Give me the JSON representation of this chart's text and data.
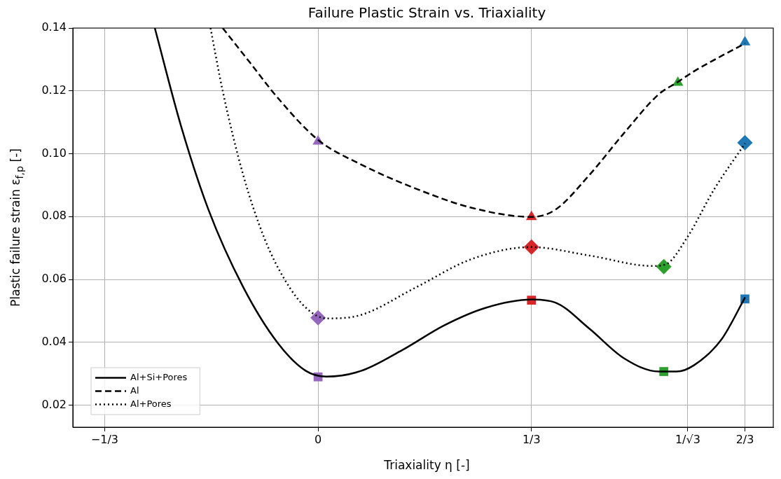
{
  "chart_data": {
    "type": "line",
    "title": "Failure Plastic Strain vs. Triaxiality",
    "xlabel": "Triaxiality η [-]",
    "ylabel": "Plastic failure strain ε$_{f,p}$ [-]",
    "xlim": [
      -0.383,
      0.711
    ],
    "ylim": [
      0.013,
      0.14
    ],
    "xticks": [
      {
        "value": -0.3333,
        "label": "−1/3"
      },
      {
        "value": 0,
        "label": "0"
      },
      {
        "value": 0.3333,
        "label": "1/3"
      },
      {
        "value": 0.5774,
        "label": "1/√3"
      },
      {
        "value": 0.6667,
        "label": "2/3"
      }
    ],
    "yticks": [
      {
        "value": 0.02,
        "label": "0.02"
      },
      {
        "value": 0.04,
        "label": "0.04"
      },
      {
        "value": 0.06,
        "label": "0.06"
      },
      {
        "value": 0.08,
        "label": "0.08"
      },
      {
        "value": 0.1,
        "label": "0.10"
      },
      {
        "value": 0.12,
        "label": "0.12"
      },
      {
        "value": 0.14,
        "label": "0.14"
      }
    ],
    "grid": true,
    "legend": "bottom left",
    "series": [
      {
        "name": "Al+Si+Pores",
        "color": "#000000",
        "line_style": "solid",
        "marker": "none",
        "x": [
          -0.255,
          -0.214,
          -0.171,
          -0.117,
          -0.063,
          -0.019,
          0.013,
          0.067,
          0.132,
          0.197,
          0.262,
          0.333,
          0.37,
          0.424,
          0.478,
          0.532,
          0.56,
          0.587,
          0.63,
          0.667
        ],
        "values": [
          0.14,
          0.1088,
          0.0821,
          0.0576,
          0.0398,
          0.0309,
          0.0291,
          0.0309,
          0.0376,
          0.0454,
          0.051,
          0.0536,
          0.0527,
          0.0443,
          0.0349,
          0.0307,
          0.0307,
          0.0327,
          0.0409,
          0.0543
        ]
      },
      {
        "name": "Al",
        "color": "#000000",
        "line_style": "dashed",
        "marker": "none",
        "x": [
          -0.149,
          -0.106,
          -0.063,
          0,
          0.067,
          0.154,
          0.24,
          0.333,
          0.37,
          0.424,
          0.478,
          0.532,
          0.56,
          0.587,
          0.63,
          0.667
        ],
        "values": [
          0.14,
          0.1289,
          0.1178,
          0.1044,
          0.0966,
          0.0888,
          0.0828,
          0.0799,
          0.0821,
          0.0933,
          0.1066,
          0.1189,
          0.1226,
          0.1262,
          0.1311,
          0.1351
        ]
      },
      {
        "name": "Al+Pores",
        "color": "#000000",
        "line_style": "dotted",
        "marker": "none",
        "x": [
          -0.168,
          -0.149,
          -0.117,
          -0.084,
          -0.052,
          -0.019,
          0.013,
          0.067,
          0.154,
          0.24,
          0.333,
          0.424,
          0.522,
          0.543,
          0.576,
          0.619,
          0.667
        ],
        "values": [
          0.14,
          0.12,
          0.0933,
          0.0732,
          0.0599,
          0.051,
          0.0476,
          0.0487,
          0.0576,
          0.0665,
          0.0703,
          0.0676,
          0.0643,
          0.0648,
          0.0732,
          0.0888,
          0.1033
        ]
      },
      {
        "type": "scatter",
        "marker": "square",
        "x": [
          0,
          0.3333,
          0.54,
          0.6667
        ],
        "values": [
          0.029,
          0.0534,
          0.0307,
          0.0538
        ],
        "colors": [
          "#9467bd",
          "#d62728",
          "#2ca02c",
          "#1f77b4"
        ]
      },
      {
        "type": "scatter",
        "marker": "diamond",
        "x": [
          0,
          0.3333,
          0.54,
          0.6667
        ],
        "values": [
          0.0478,
          0.0703,
          0.0641,
          0.1035
        ],
        "colors": [
          "#9467bd",
          "#d62728",
          "#2ca02c",
          "#1f77b4"
        ]
      },
      {
        "type": "scatter",
        "marker": "triangle",
        "x": [
          0,
          0.3333,
          0.562,
          0.6667
        ],
        "values": [
          0.1039,
          0.0799,
          0.1226,
          0.1355
        ],
        "colors": [
          "#9467bd",
          "#d62728",
          "#2ca02c",
          "#1f77b4"
        ]
      }
    ]
  }
}
